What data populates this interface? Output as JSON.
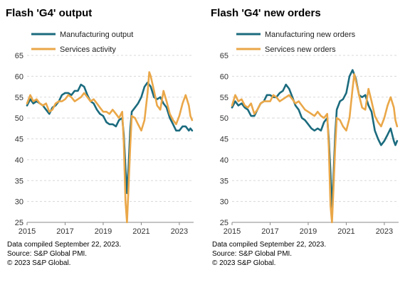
{
  "footnotes": [
    "Data compiled September 22, 2023.",
    "Source: S&P Global PMI.",
    "© 2023 S&P Global."
  ],
  "colors": {
    "manufacturing": "#1b6b7e",
    "services": "#eaa748",
    "grid": "#d8d8d8",
    "axis": "#888888"
  },
  "chart_data": [
    {
      "type": "line",
      "title": "Flash 'G4' output",
      "xlabel": "",
      "ylabel": "",
      "xlim": [
        2015.0,
        2023.75
      ],
      "ylim": [
        25,
        65
      ],
      "yticks": [
        25,
        30,
        35,
        40,
        45,
        50,
        55,
        60,
        65
      ],
      "xticks": [
        2015,
        2017,
        2019,
        2021,
        2023
      ],
      "grid": "dashed-horizontal",
      "legend": "top",
      "series": [
        {
          "name": "Manufacturing output",
          "color": "manufacturing",
          "x": [
            2015.0,
            2015.17,
            2015.33,
            2015.5,
            2015.67,
            2015.83,
            2016.0,
            2016.17,
            2016.33,
            2016.5,
            2016.67,
            2016.83,
            2017.0,
            2017.17,
            2017.33,
            2017.5,
            2017.67,
            2017.83,
            2018.0,
            2018.17,
            2018.33,
            2018.5,
            2018.67,
            2018.83,
            2019.0,
            2019.17,
            2019.33,
            2019.5,
            2019.67,
            2019.83,
            2020.0,
            2020.08,
            2020.17,
            2020.25,
            2020.33,
            2020.42,
            2020.5,
            2020.67,
            2020.83,
            2021.0,
            2021.17,
            2021.33,
            2021.5,
            2021.67,
            2021.83,
            2022.0,
            2022.17,
            2022.33,
            2022.5,
            2022.67,
            2022.83,
            2023.0,
            2023.17,
            2023.33,
            2023.5,
            2023.58,
            2023.67
          ],
          "y": [
            53.0,
            54.5,
            53.5,
            54.0,
            53.5,
            53.0,
            52.0,
            51.0,
            52.5,
            53.0,
            54.0,
            55.5,
            56.0,
            56.0,
            55.5,
            56.5,
            56.5,
            58.0,
            57.5,
            55.5,
            54.0,
            53.5,
            52.0,
            51.0,
            50.5,
            49.0,
            48.5,
            48.5,
            48.0,
            49.5,
            50.0,
            46.0,
            38.0,
            32.0,
            38.0,
            47.0,
            51.5,
            52.5,
            53.5,
            55.0,
            57.5,
            58.5,
            57.5,
            55.0,
            54.5,
            55.0,
            53.5,
            52.5,
            50.0,
            48.5,
            47.0,
            47.0,
            48.0,
            48.0,
            47.0,
            47.5,
            47.0
          ]
        },
        {
          "name": "Services activity",
          "color": "services",
          "x": [
            2015.0,
            2015.17,
            2015.33,
            2015.5,
            2015.67,
            2015.83,
            2016.0,
            2016.17,
            2016.33,
            2016.5,
            2016.67,
            2016.83,
            2017.0,
            2017.17,
            2017.33,
            2017.5,
            2017.67,
            2017.83,
            2018.0,
            2018.17,
            2018.33,
            2018.5,
            2018.67,
            2018.83,
            2019.0,
            2019.17,
            2019.33,
            2019.5,
            2019.67,
            2019.83,
            2020.0,
            2020.08,
            2020.17,
            2020.25,
            2020.33,
            2020.42,
            2020.5,
            2020.67,
            2020.83,
            2021.0,
            2021.17,
            2021.33,
            2021.42,
            2021.5,
            2021.67,
            2021.83,
            2022.0,
            2022.17,
            2022.33,
            2022.5,
            2022.67,
            2022.83,
            2023.0,
            2023.17,
            2023.33,
            2023.5,
            2023.58,
            2023.67
          ],
          "y": [
            53.5,
            55.5,
            54.0,
            54.5,
            53.5,
            53.0,
            53.5,
            51.5,
            52.0,
            53.5,
            54.0,
            54.0,
            54.5,
            55.5,
            55.0,
            54.0,
            54.5,
            55.0,
            56.0,
            55.0,
            54.0,
            54.5,
            53.5,
            52.5,
            51.5,
            51.5,
            51.0,
            52.0,
            51.0,
            50.0,
            51.5,
            44.0,
            30.0,
            25.0,
            33.0,
            43.0,
            50.5,
            50.0,
            48.5,
            47.0,
            49.5,
            56.0,
            61.0,
            60.0,
            56.5,
            53.0,
            52.0,
            56.5,
            54.0,
            51.0,
            49.5,
            48.5,
            50.5,
            53.5,
            55.5,
            53.0,
            50.5,
            49.5
          ]
        }
      ]
    },
    {
      "type": "line",
      "title": "Flash 'G4' new orders",
      "xlabel": "",
      "ylabel": "",
      "xlim": [
        2015.0,
        2023.75
      ],
      "ylim": [
        25,
        65
      ],
      "yticks": [
        25,
        30,
        35,
        40,
        45,
        50,
        55,
        60,
        65
      ],
      "xticks": [
        2015,
        2017,
        2019,
        2021,
        2023
      ],
      "grid": "dashed-horizontal",
      "legend": "top",
      "series": [
        {
          "name": "Manufacturing new orders",
          "color": "manufacturing",
          "x": [
            2015.0,
            2015.17,
            2015.33,
            2015.5,
            2015.67,
            2015.83,
            2016.0,
            2016.17,
            2016.33,
            2016.5,
            2016.67,
            2016.83,
            2017.0,
            2017.17,
            2017.33,
            2017.5,
            2017.67,
            2017.83,
            2018.0,
            2018.17,
            2018.33,
            2018.5,
            2018.67,
            2018.83,
            2019.0,
            2019.17,
            2019.33,
            2019.5,
            2019.67,
            2019.83,
            2020.0,
            2020.08,
            2020.17,
            2020.25,
            2020.33,
            2020.42,
            2020.5,
            2020.67,
            2020.83,
            2021.0,
            2021.17,
            2021.33,
            2021.5,
            2021.67,
            2021.83,
            2022.0,
            2022.17,
            2022.33,
            2022.5,
            2022.67,
            2022.83,
            2023.0,
            2023.17,
            2023.33,
            2023.5,
            2023.58,
            2023.67
          ],
          "y": [
            52.5,
            54.0,
            53.0,
            53.5,
            52.5,
            52.0,
            50.5,
            50.5,
            52.0,
            53.5,
            54.0,
            55.5,
            55.5,
            55.0,
            55.0,
            56.0,
            56.5,
            58.0,
            57.0,
            55.0,
            53.0,
            52.0,
            50.0,
            49.5,
            48.5,
            47.5,
            47.0,
            47.5,
            47.0,
            49.0,
            50.0,
            45.0,
            37.0,
            28.0,
            36.0,
            46.0,
            52.0,
            54.0,
            54.5,
            56.0,
            60.0,
            61.5,
            59.5,
            55.5,
            55.0,
            55.5,
            53.0,
            51.5,
            47.0,
            45.0,
            43.5,
            44.5,
            46.0,
            47.5,
            44.5,
            43.5,
            44.5
          ]
        },
        {
          "name": "Services new orders",
          "color": "services",
          "x": [
            2015.0,
            2015.17,
            2015.33,
            2015.5,
            2015.67,
            2015.83,
            2016.0,
            2016.17,
            2016.33,
            2016.5,
            2016.67,
            2016.83,
            2017.0,
            2017.17,
            2017.33,
            2017.5,
            2017.67,
            2017.83,
            2018.0,
            2018.17,
            2018.33,
            2018.5,
            2018.67,
            2018.83,
            2019.0,
            2019.17,
            2019.33,
            2019.5,
            2019.67,
            2019.83,
            2020.0,
            2020.08,
            2020.17,
            2020.25,
            2020.33,
            2020.42,
            2020.5,
            2020.67,
            2020.83,
            2021.0,
            2021.17,
            2021.33,
            2021.42,
            2021.5,
            2021.67,
            2021.83,
            2022.0,
            2022.17,
            2022.33,
            2022.5,
            2022.67,
            2022.83,
            2023.0,
            2023.17,
            2023.33,
            2023.5,
            2023.58,
            2023.67
          ],
          "y": [
            53.0,
            55.5,
            54.0,
            54.5,
            53.0,
            52.5,
            53.5,
            51.0,
            52.0,
            53.5,
            54.0,
            54.0,
            54.0,
            55.5,
            55.0,
            54.0,
            54.5,
            55.0,
            55.5,
            54.5,
            53.5,
            54.0,
            53.0,
            52.0,
            51.5,
            51.0,
            50.5,
            51.5,
            50.5,
            50.0,
            51.0,
            43.0,
            29.0,
            25.0,
            33.0,
            43.0,
            50.0,
            49.5,
            48.0,
            47.0,
            50.0,
            57.0,
            60.5,
            59.0,
            55.5,
            52.5,
            52.0,
            57.0,
            54.0,
            50.5,
            49.0,
            48.0,
            50.0,
            53.0,
            55.0,
            52.5,
            49.5,
            48.0
          ]
        }
      ]
    }
  ]
}
